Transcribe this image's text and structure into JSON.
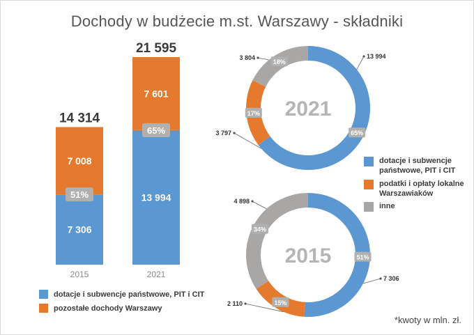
{
  "title": "Dochody w budżecie m.st. Warszawy - składniki",
  "colors": {
    "blue": "#5b97d0",
    "orange": "#e57a2e",
    "gray": "#a8a7a6",
    "pct_badge": "#b0b0b0"
  },
  "bar_legend": [
    {
      "label": "dotacje i subwencje państwowe, PIT i CIT",
      "color": "#5b97d0"
    },
    {
      "label": "pozostałe dochody Warszawy",
      "color": "#e57a2e"
    }
  ],
  "donut_legend": [
    {
      "label": "dotacje i subwencje państwowe, PIT i CIT",
      "color": "#5b97d0"
    },
    {
      "label": "podatki i opłaty lokalne Warszawiaków",
      "color": "#e57a2e"
    },
    {
      "label": "inne",
      "color": "#a8a7a6"
    }
  ],
  "footnote": "*kwoty w mln. zł.",
  "chart_data": [
    {
      "type": "bar",
      "stacked": true,
      "categories": [
        "2015",
        "2021"
      ],
      "totals": [
        "14 314",
        "21 595"
      ],
      "series": [
        {
          "name": "dotacje i subwencje państwowe, PIT i CIT",
          "values": [
            7306,
            13994
          ],
          "labels": [
            "7 306",
            "13 994"
          ],
          "share_labels": [
            "51%",
            "65%"
          ]
        },
        {
          "name": "pozostałe dochody Warszawy",
          "values": [
            7008,
            7601
          ],
          "labels": [
            "7 008",
            "7 601"
          ]
        }
      ]
    },
    {
      "type": "pie",
      "donut": true,
      "title": "2021",
      "slices": [
        {
          "name": "dotacje i subwencje państwowe, PIT i CIT",
          "value": 13994,
          "label": "13 994",
          "pct": "65%"
        },
        {
          "name": "podatki i opłaty lokalne Warszawiaków",
          "value": 3797,
          "label": "3 797",
          "pct": "17%"
        },
        {
          "name": "inne",
          "value": 3804,
          "label": "3 804",
          "pct": "18%"
        }
      ]
    },
    {
      "type": "pie",
      "donut": true,
      "title": "2015",
      "slices": [
        {
          "name": "dotacje i subwencje państwowe, PIT i CIT",
          "value": 7306,
          "label": "7 306",
          "pct": "51%"
        },
        {
          "name": "podatki i opłaty lokalne Warszawiaków",
          "value": 2110,
          "label": "2 110",
          "pct": "15%"
        },
        {
          "name": "inne",
          "value": 4898,
          "label": "4 898",
          "pct": "34%"
        }
      ]
    }
  ]
}
